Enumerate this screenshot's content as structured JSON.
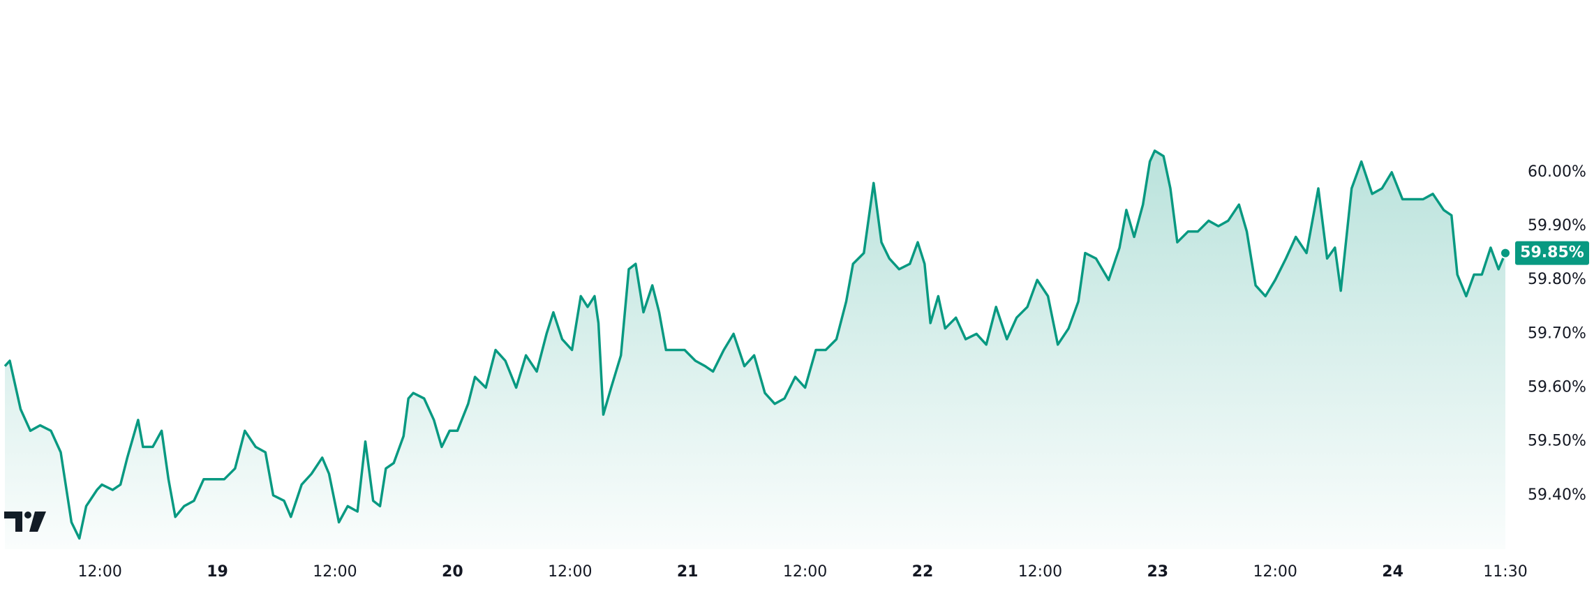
{
  "chart_data": {
    "type": "area",
    "x": [
      2.3,
      2.8,
      3.9,
      4.9,
      5.9,
      7.0,
      8.0,
      9.1,
      9.9,
      10.6,
      11.7,
      12.2,
      13.3,
      14.1,
      14.8,
      15.9,
      16.4,
      17.4,
      18.3,
      19.0,
      19.7,
      20.6,
      21.6,
      22.6,
      23.7,
      24.7,
      25.8,
      26.8,
      27.9,
      28.9,
      29.7,
      30.8,
      31.5,
      32.6,
      33.6,
      34.7,
      35.4,
      36.4,
      37.3,
      38.3,
      39.1,
      39.9,
      40.6,
      41.2,
      42.0,
      43.0,
      43.5,
      44.0,
      45.1,
      46.1,
      46.9,
      47.7,
      48.5,
      49.6,
      50.3,
      51.4,
      52.4,
      53.4,
      54.5,
      55.5,
      56.6,
      57.6,
      58.3,
      59.2,
      60.2,
      61.1,
      61.8,
      62.5,
      62.9,
      63.4,
      64.2,
      65.2,
      66.0,
      66.7,
      67.5,
      68.4,
      69.1,
      69.8,
      70.7,
      71.7,
      72.8,
      73.8,
      74.6,
      75.7,
      76.7,
      77.8,
      78.8,
      79.9,
      80.9,
      81.9,
      83.0,
      84.0,
      85.1,
      86.1,
      87.2,
      88.2,
      88.9,
      90.0,
      91.0,
      91.8,
      92.6,
      93.6,
      94.7,
      95.5,
      96.2,
      96.8,
      97.6,
      98.3,
      99.4,
      100.4,
      101.5,
      102.5,
      103.5,
      104.6,
      105.6,
      106.7,
      107.7,
      108.8,
      109.8,
      110.9,
      111.9,
      112.6,
      113.7,
      115.0,
      116.1,
      116.8,
      117.6,
      118.5,
      119.2,
      119.7,
      120.6,
      121.3,
      122.0,
      123.1,
      124.1,
      125.2,
      126.2,
      127.2,
      128.3,
      129.1,
      130.0,
      131.0,
      132.0,
      133.1,
      134.1,
      135.2,
      136.4,
      137.3,
      138.1,
      138.7,
      139.8,
      140.8,
      141.9,
      142.9,
      143.9,
      145.0,
      146.0,
      147.1,
      148.1,
      149.2,
      150.0,
      150.6,
      151.5,
      152.3,
      153.1,
      154.0,
      154.8,
      155.5
    ],
    "series": [
      {
        "color": "#089981",
        "values": [
          59.64,
          59.65,
          59.56,
          59.52,
          59.53,
          59.52,
          59.48,
          59.35,
          59.32,
          59.38,
          59.41,
          59.42,
          59.41,
          59.42,
          59.47,
          59.54,
          59.49,
          59.49,
          59.52,
          59.43,
          59.36,
          59.38,
          59.39,
          59.43,
          59.43,
          59.43,
          59.45,
          59.52,
          59.49,
          59.48,
          59.4,
          59.39,
          59.36,
          59.42,
          59.44,
          59.47,
          59.44,
          59.35,
          59.38,
          59.37,
          59.5,
          59.39,
          59.38,
          59.45,
          59.46,
          59.51,
          59.58,
          59.59,
          59.58,
          59.54,
          59.49,
          59.52,
          59.52,
          59.57,
          59.62,
          59.6,
          59.67,
          59.65,
          59.6,
          59.66,
          59.63,
          59.7,
          59.74,
          59.69,
          59.67,
          59.77,
          59.75,
          59.77,
          59.72,
          59.55,
          59.6,
          59.66,
          59.82,
          59.83,
          59.74,
          59.79,
          59.74,
          59.67,
          59.67,
          59.67,
          59.65,
          59.64,
          59.63,
          59.67,
          59.7,
          59.64,
          59.66,
          59.59,
          59.57,
          59.58,
          59.62,
          59.6,
          59.67,
          59.67,
          59.69,
          59.76,
          59.83,
          59.85,
          59.98,
          59.87,
          59.84,
          59.82,
          59.83,
          59.87,
          59.83,
          59.72,
          59.77,
          59.71,
          59.73,
          59.69,
          59.7,
          59.68,
          59.75,
          59.69,
          59.73,
          59.75,
          59.8,
          59.77,
          59.68,
          59.71,
          59.76,
          59.85,
          59.84,
          59.8,
          59.86,
          59.93,
          59.88,
          59.94,
          60.02,
          60.04,
          60.03,
          59.97,
          59.87,
          59.89,
          59.89,
          59.91,
          59.9,
          59.91,
          59.94,
          59.89,
          59.79,
          59.77,
          59.8,
          59.84,
          59.88,
          59.85,
          59.97,
          59.84,
          59.86,
          59.78,
          59.97,
          60.02,
          59.96,
          59.97,
          60.0,
          59.95,
          59.95,
          59.95,
          59.96,
          59.93,
          59.92,
          59.81,
          59.77,
          59.81,
          59.81,
          59.86,
          59.82,
          59.85
        ]
      }
    ],
    "xlim": [
      1.8,
      155.5
    ],
    "ylim": [
      59.3,
      60.32
    ],
    "xticks": [
      {
        "value": 12,
        "label": "12:00"
      },
      {
        "value": 24,
        "label": "19"
      },
      {
        "value": 36,
        "label": "12:00"
      },
      {
        "value": 48,
        "label": "20"
      },
      {
        "value": 60,
        "label": "12:00"
      },
      {
        "value": 72,
        "label": "21"
      },
      {
        "value": 84,
        "label": "12:00"
      },
      {
        "value": 96,
        "label": "22"
      },
      {
        "value": 108,
        "label": "12:00"
      },
      {
        "value": 120,
        "label": "23"
      },
      {
        "value": 132,
        "label": "12:00"
      },
      {
        "value": 144,
        "label": "24"
      },
      {
        "value": 155.5,
        "label": "11:30"
      }
    ],
    "yticks": [
      {
        "value": 59.4,
        "label": "59.40%"
      },
      {
        "value": 59.5,
        "label": "59.50%"
      },
      {
        "value": 59.6,
        "label": "59.60%"
      },
      {
        "value": 59.7,
        "label": "59.70%"
      },
      {
        "value": 59.8,
        "label": "59.80%"
      },
      {
        "value": 59.9,
        "label": "59.90%"
      },
      {
        "value": 60.0,
        "label": "60.00%"
      }
    ],
    "last_value": {
      "value": 59.85,
      "label": "59.85%"
    }
  }
}
